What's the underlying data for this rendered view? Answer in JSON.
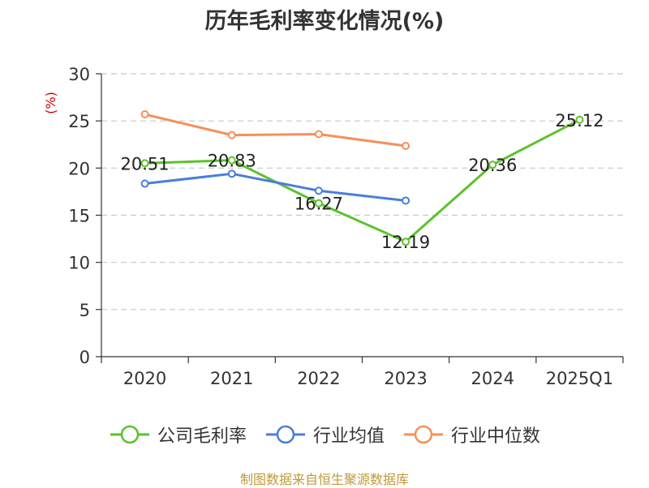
{
  "title": "历年毛利率变化情况(%)",
  "unit_label": "(%)",
  "source_note": "制图数据来自恒生聚源数据库",
  "chart_data": {
    "type": "line",
    "title": "历年毛利率变化情况(%)",
    "xlabel": "",
    "ylabel": "(%)",
    "categories": [
      "2020",
      "2021",
      "2022",
      "2023",
      "2024",
      "2025Q1"
    ],
    "ylim": [
      0,
      30
    ],
    "yticks": [
      0,
      5,
      10,
      15,
      20,
      25,
      30
    ],
    "grid": true,
    "legend_position": "bottom",
    "series": [
      {
        "name": "公司毛利率",
        "color": "#5cc22d",
        "values": [
          20.51,
          20.83,
          16.27,
          12.19,
          20.36,
          25.12
        ],
        "show_labels": true
      },
      {
        "name": "行业均值",
        "color": "#4a7fd8",
        "values": [
          18.35,
          19.4,
          17.6,
          16.55,
          null,
          null
        ],
        "show_labels": false
      },
      {
        "name": "行业中位数",
        "color": "#f5905a",
        "values": [
          25.7,
          23.5,
          23.6,
          22.35,
          null,
          null
        ],
        "show_labels": false
      }
    ],
    "data_labels": [
      "20.51",
      "20.83",
      "16.27",
      "12.19",
      "20.36",
      "25.12"
    ]
  }
}
